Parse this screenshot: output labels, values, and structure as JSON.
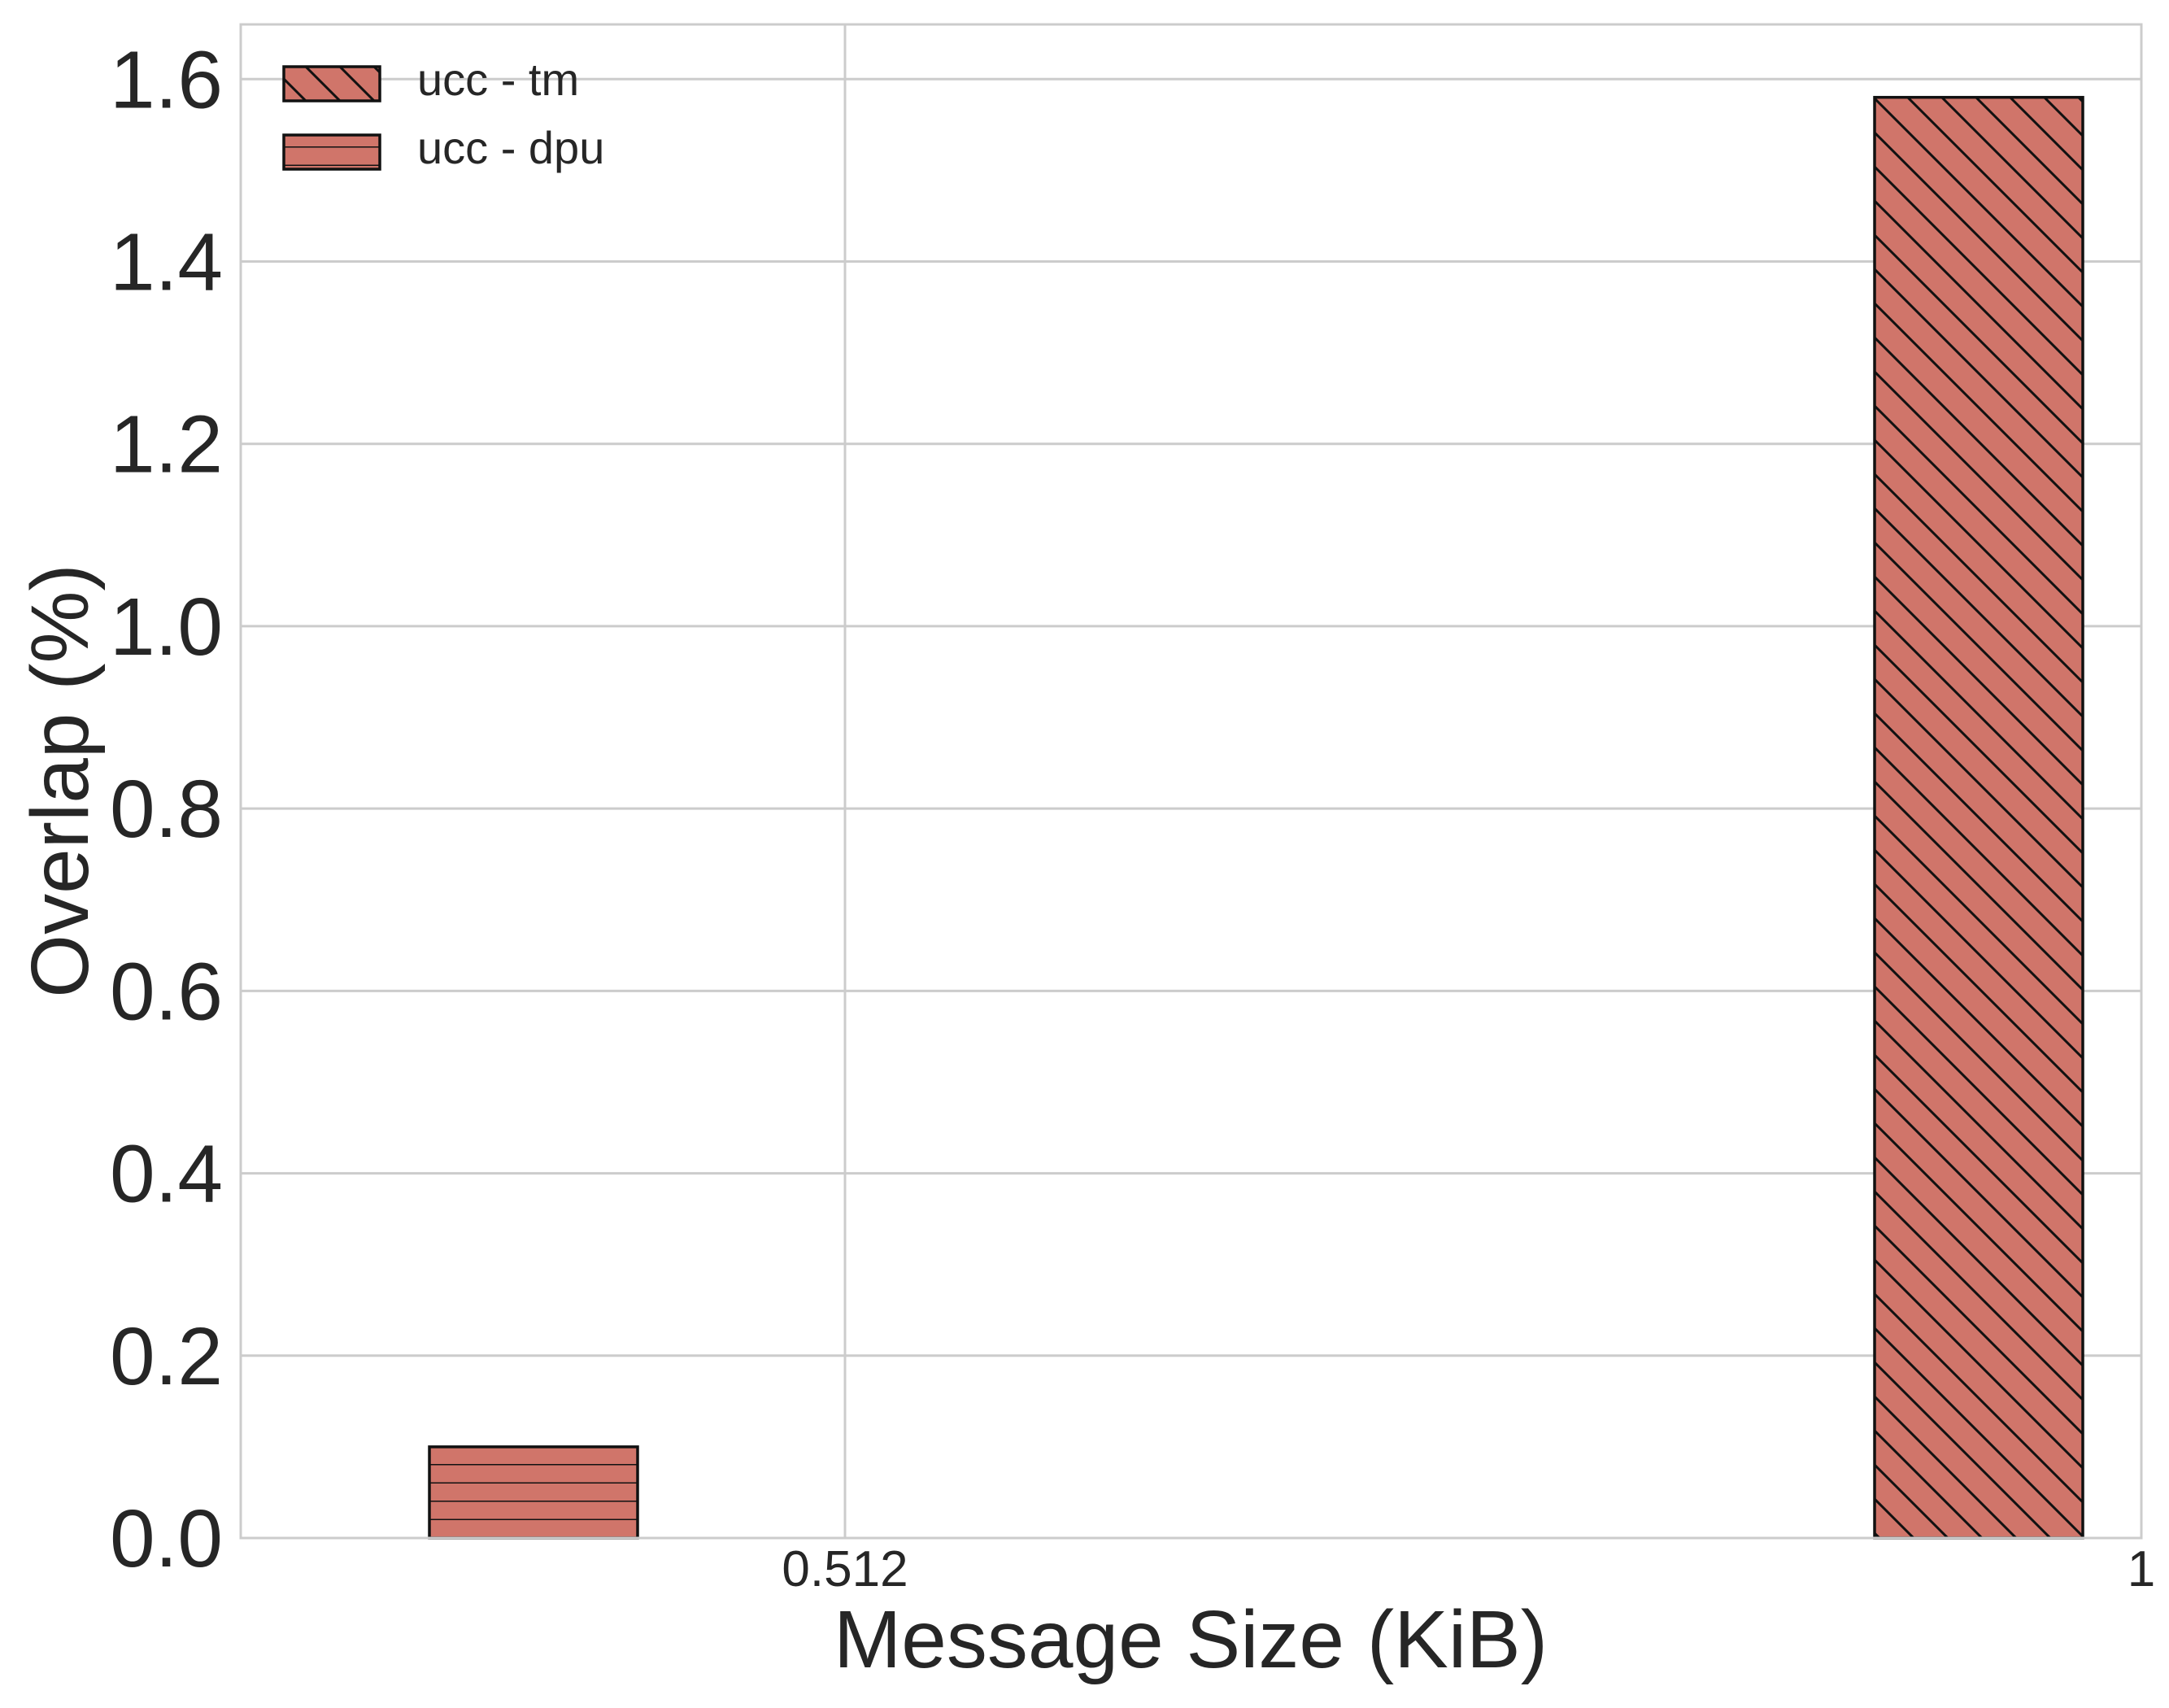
{
  "chart_data": {
    "type": "bar",
    "xlabel": "Message Size (KiB)",
    "ylabel": "Overlap (%)",
    "ylim": [
      0,
      1.66
    ],
    "grid": true,
    "legend_position": "top-left",
    "x_ticks": [
      "0.512",
      "1"
    ],
    "y_ticks": [
      "0.0",
      "0.2",
      "0.4",
      "0.6",
      "0.8",
      "1.0",
      "1.2",
      "1.4",
      "1.6"
    ],
    "categories": [
      "0.512",
      "1"
    ],
    "series": [
      {
        "name": "ucc - tm",
        "hatch": "diagonal",
        "color": "#d0756a",
        "values": [
          null,
          1.58
        ]
      },
      {
        "name": "ucc - dpu",
        "hatch": "horizontal",
        "color": "#d0756a",
        "values": [
          0.1,
          null
        ]
      }
    ]
  }
}
